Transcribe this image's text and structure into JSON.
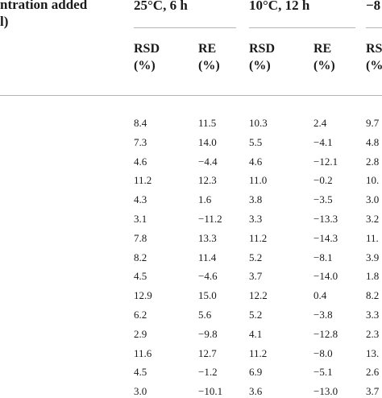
{
  "header": {
    "concentration_line1": "ntration added",
    "concentration_line2": "l)",
    "groups": [
      {
        "label": "25°C, 6 h"
      },
      {
        "label": "10°C, 12 h"
      },
      {
        "label": "−8"
      }
    ],
    "sub_columns": [
      {
        "line1": "RSD",
        "line2": "(%)"
      },
      {
        "line1": "RE",
        "line2": "(%)"
      },
      {
        "line1": "RSD",
        "line2": "(%)"
      },
      {
        "line1": "RE",
        "line2": "(%)"
      },
      {
        "line1": "RS",
        "line2": "(%"
      }
    ]
  },
  "rows": [
    [
      "8.4",
      "11.5",
      "10.3",
      "2.4",
      "9.7"
    ],
    [
      "7.3",
      "14.0",
      "5.5",
      "−4.1",
      "4.8"
    ],
    [
      "4.6",
      "−4.4",
      "4.6",
      "−12.1",
      "2.8"
    ],
    [
      "11.2",
      "12.3",
      "11.0",
      "−0.2",
      "10."
    ],
    [
      "4.3",
      "1.6",
      "3.8",
      "−3.5",
      "3.0"
    ],
    [
      "3.1",
      "−11.2",
      "3.3",
      "−13.3",
      "3.2"
    ],
    [
      "7.8",
      "13.3",
      "11.2",
      "−14.3",
      "11."
    ],
    [
      "8.2",
      "11.4",
      "5.2",
      "−8.1",
      "3.9"
    ],
    [
      "4.5",
      "−4.6",
      "3.7",
      "−14.0",
      "1.8"
    ],
    [
      "12.9",
      "15.0",
      "12.2",
      "0.4",
      "8.2"
    ],
    [
      "6.2",
      "5.6",
      "5.2",
      "−3.8",
      "3.3"
    ],
    [
      "2.9",
      "−9.8",
      "4.1",
      "−12.8",
      "2.3"
    ],
    [
      "11.6",
      "12.7",
      "11.2",
      "−8.0",
      "13."
    ],
    [
      "4.5",
      "−1.2",
      "6.9",
      "−5.1",
      "2.6"
    ],
    [
      "3.0",
      "−10.1",
      "3.6",
      "−13.0",
      "3.7"
    ]
  ]
}
